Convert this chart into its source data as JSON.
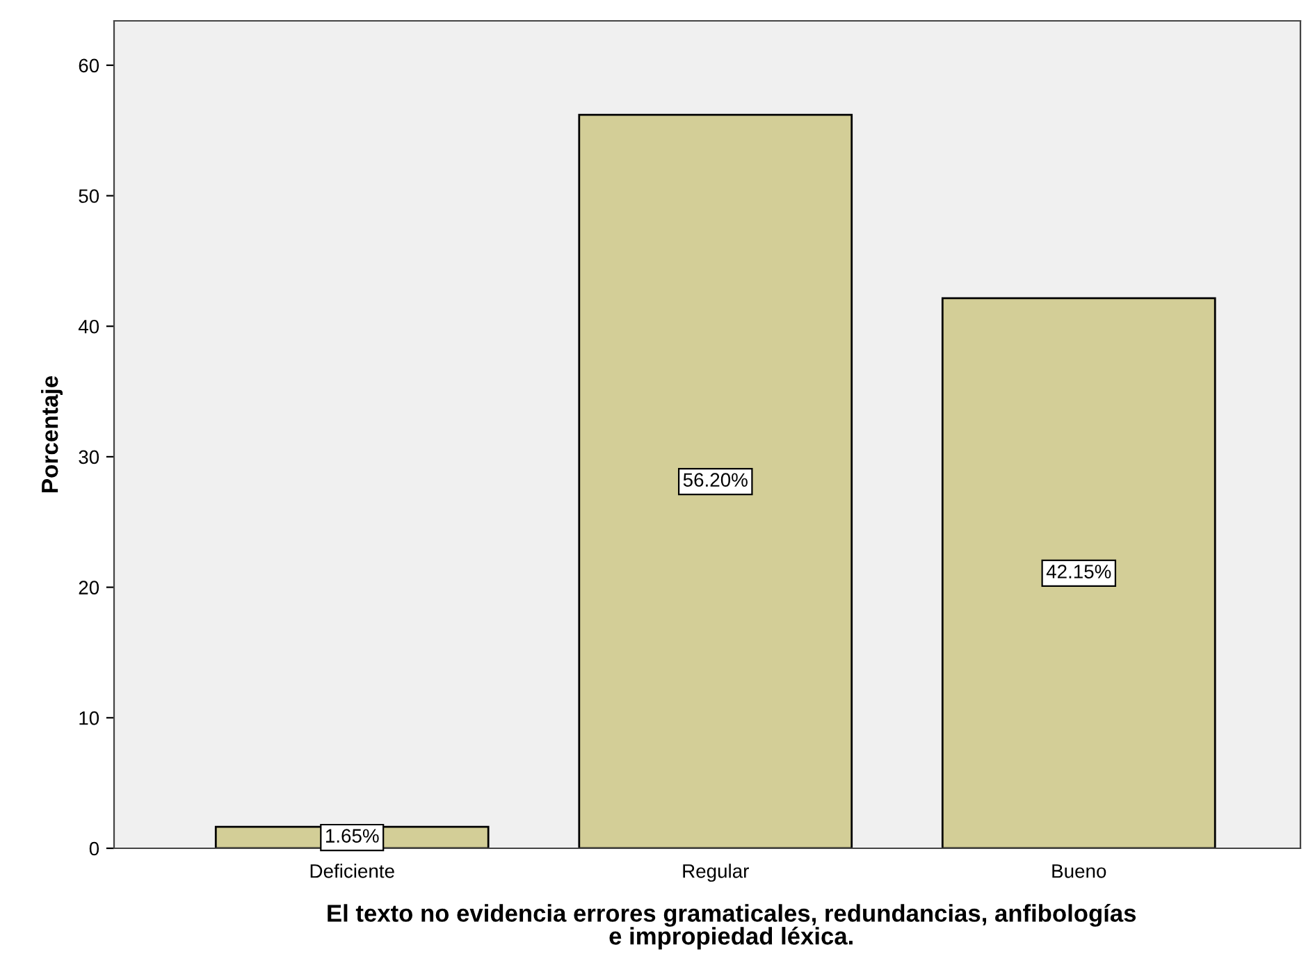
{
  "chart_data": {
    "type": "bar",
    "xlabel": "El texto no evidencia errores gramaticales, redundancias, anfibologías e impropiedad léxica.",
    "ylabel": "Porcentaje",
    "categories": [
      "Deficiente",
      "Regular",
      "Bueno"
    ],
    "values": [
      1.65,
      56.2,
      42.15
    ],
    "value_labels": [
      "1.65%",
      "56.20%",
      "42.15%"
    ],
    "color": "#d3ce97",
    "ylim": [
      0,
      63.4
    ],
    "yticks": [
      0,
      10,
      20,
      30,
      40,
      50,
      60
    ],
    "grid": false
  }
}
